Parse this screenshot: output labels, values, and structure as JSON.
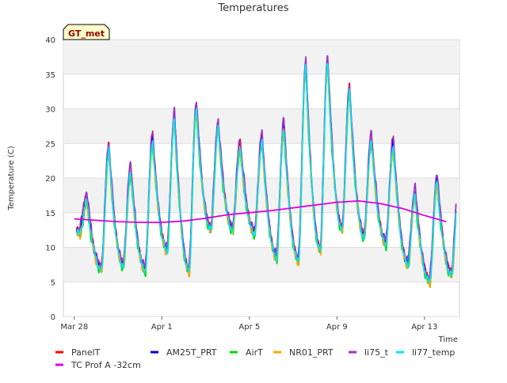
{
  "chart_data": {
    "type": "line",
    "title": "Temperatures",
    "xlabel": "Time",
    "ylabel": "Temperature (C)",
    "site_label": "GT_met",
    "ylim": [
      0,
      40
    ],
    "xlim_days": [
      -0.5,
      17.6
    ],
    "grid": true,
    "legend_placement": "bottom",
    "y_ticks": [
      0,
      5,
      10,
      15,
      20,
      25,
      30,
      35,
      40
    ],
    "x_ticks": [
      {
        "label": "Mar 28",
        "day": 0
      },
      {
        "label": "Apr 1",
        "day": 4
      },
      {
        "label": "Apr 5",
        "day": 8
      },
      {
        "label": "Apr 9",
        "day": 12
      },
      {
        "label": "Apr 13",
        "day": 16
      }
    ],
    "x_start": "Mar 28",
    "daily_min": [
      12,
      6.8,
      7.3,
      6.7,
      9.5,
      6.5,
      12.5,
      12.5,
      12,
      8.5,
      8,
      9.5,
      12.5,
      11.5,
      10.5,
      7.5,
      5,
      6,
      10
    ],
    "daily_max": [
      16.7,
      24,
      21,
      25.5,
      28.5,
      30,
      27.2,
      24.5,
      25.5,
      27.3,
      36,
      36.5,
      32.5,
      25.5,
      24.8,
      17.5,
      19.5,
      19.2,
      15
    ],
    "series": [
      {
        "name": "PanelT",
        "color": "#ff0000",
        "offset": 0.8
      },
      {
        "name": "AM25T_PRT",
        "color": "#0000cc",
        "offset": 0.3
      },
      {
        "name": "AirT",
        "color": "#00dd00",
        "offset": -0.6
      },
      {
        "name": "NR01_PRT",
        "color": "#ffa500",
        "offset": -0.3
      },
      {
        "name": "li75_t",
        "color": "#9933cc",
        "offset": 1.2
      },
      {
        "name": "li77_temp",
        "color": "#00e5ee",
        "offset": 0.0
      },
      {
        "name": "TC Prof A -32cm",
        "color": "#dd00dd",
        "offset": 0.0
      }
    ],
    "soil_series": {
      "name": "TC Prof A -32cm",
      "x_days": [
        0,
        1,
        2,
        3,
        4,
        5,
        6,
        7,
        8,
        9,
        10,
        11,
        12,
        13,
        14,
        15,
        16,
        17
      ],
      "values": [
        14.1,
        13.9,
        13.7,
        13.6,
        13.6,
        13.8,
        14.2,
        14.7,
        15.0,
        15.3,
        15.7,
        16.1,
        16.5,
        16.7,
        16.3,
        15.6,
        14.6,
        13.7
      ]
    }
  }
}
